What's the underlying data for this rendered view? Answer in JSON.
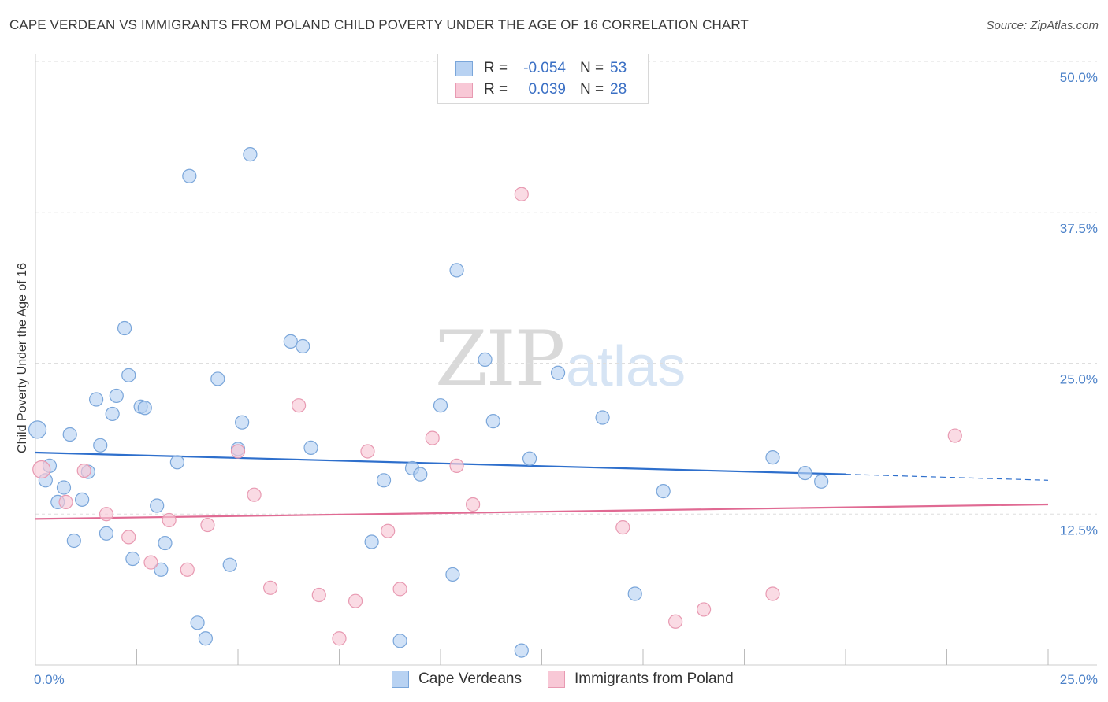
{
  "title": "CAPE VERDEAN VS IMMIGRANTS FROM POLAND CHILD POVERTY UNDER THE AGE OF 16 CORRELATION CHART",
  "source": "Source: ZipAtlas.com",
  "watermark": {
    "zip": "ZIP",
    "atlas": "atlas"
  },
  "legend": {
    "rows": [
      {
        "r_label": "R =",
        "r_value": "-0.054",
        "n_label": "N =",
        "n_value": "53"
      },
      {
        "r_label": "R =",
        "r_value": "0.039",
        "n_label": "N =",
        "n_value": "28"
      }
    ]
  },
  "bottom_legend": [
    "Cape Verdeans",
    "Immigrants from Poland"
  ],
  "colors": {
    "blue_fill": "#b8d2f2",
    "blue_stroke": "#7aa6da",
    "blue_line": "#2e6fcc",
    "pink_fill": "#f8c8d6",
    "pink_stroke": "#e89ab2",
    "pink_line": "#e06a93",
    "tick": "#4a80c8",
    "grid": "#dedede"
  },
  "chart_data": {
    "type": "scatter",
    "title": "CAPE VERDEAN VS IMMIGRANTS FROM POLAND CHILD POVERTY UNDER THE AGE OF 16 CORRELATION CHART",
    "xlabel": "",
    "ylabel": "Child Poverty Under the Age of 16",
    "xlim": [
      0,
      25
    ],
    "ylim": [
      0,
      50
    ],
    "x_ticks": [
      "0.0%",
      "25.0%"
    ],
    "y_ticks": [
      {
        "value": 50,
        "label": "50.0%"
      },
      {
        "value": 37.5,
        "label": "37.5%"
      },
      {
        "value": 25,
        "label": "25.0%"
      },
      {
        "value": 12.5,
        "label": "12.5%"
      }
    ],
    "grid": true,
    "legend_position": "top-center",
    "series": [
      {
        "name": "Cape Verdeans",
        "r": -0.054,
        "n": 53,
        "trend": {
          "x0": 0,
          "y0": 17.6,
          "x1": 20,
          "y1": 15.8,
          "dash_to": 25,
          "dash_y": 15.3
        },
        "points": [
          [
            0.05,
            19.5
          ],
          [
            0.25,
            15.3
          ],
          [
            0.35,
            16.5
          ],
          [
            0.55,
            13.5
          ],
          [
            0.7,
            14.7
          ],
          [
            0.85,
            19.1
          ],
          [
            0.95,
            10.3
          ],
          [
            1.15,
            13.7
          ],
          [
            1.3,
            16.0
          ],
          [
            1.5,
            22.0
          ],
          [
            1.6,
            18.2
          ],
          [
            1.75,
            10.9
          ],
          [
            1.9,
            20.8
          ],
          [
            2.0,
            22.3
          ],
          [
            2.2,
            27.9
          ],
          [
            2.3,
            24.0
          ],
          [
            2.4,
            8.8
          ],
          [
            2.6,
            21.4
          ],
          [
            2.7,
            21.3
          ],
          [
            3.0,
            13.2
          ],
          [
            3.1,
            7.9
          ],
          [
            3.2,
            10.1
          ],
          [
            3.5,
            16.8
          ],
          [
            3.8,
            40.5
          ],
          [
            4.0,
            3.5
          ],
          [
            4.2,
            2.2
          ],
          [
            4.5,
            23.7
          ],
          [
            4.8,
            8.3
          ],
          [
            5.0,
            17.9
          ],
          [
            5.1,
            20.1
          ],
          [
            5.3,
            42.3
          ],
          [
            6.3,
            26.8
          ],
          [
            6.6,
            26.4
          ],
          [
            6.8,
            18.0
          ],
          [
            8.3,
            10.2
          ],
          [
            8.6,
            15.3
          ],
          [
            9.0,
            2.0
          ],
          [
            9.3,
            16.3
          ],
          [
            9.5,
            15.8
          ],
          [
            10.0,
            21.5
          ],
          [
            10.3,
            7.5
          ],
          [
            10.4,
            32.7
          ],
          [
            11.1,
            25.3
          ],
          [
            11.3,
            20.2
          ],
          [
            12.0,
            1.2
          ],
          [
            12.2,
            17.1
          ],
          [
            12.9,
            24.2
          ],
          [
            14.0,
            20.5
          ],
          [
            14.8,
            5.9
          ],
          [
            15.5,
            14.4
          ],
          [
            18.2,
            17.2
          ],
          [
            19.0,
            15.9
          ],
          [
            19.4,
            15.2
          ]
        ]
      },
      {
        "name": "Immigrants from Poland",
        "r": 0.039,
        "n": 28,
        "trend": {
          "x0": 0,
          "y0": 12.1,
          "x1": 25,
          "y1": 13.3
        },
        "points": [
          [
            0.15,
            16.2
          ],
          [
            0.75,
            13.5
          ],
          [
            1.2,
            16.1
          ],
          [
            1.75,
            12.5
          ],
          [
            2.3,
            10.6
          ],
          [
            2.85,
            8.5
          ],
          [
            3.3,
            12.0
          ],
          [
            3.75,
            7.9
          ],
          [
            4.25,
            11.6
          ],
          [
            5.0,
            17.7
          ],
          [
            5.4,
            14.1
          ],
          [
            5.8,
            6.4
          ],
          [
            6.5,
            21.5
          ],
          [
            7.0,
            5.8
          ],
          [
            7.5,
            2.2
          ],
          [
            7.9,
            5.3
          ],
          [
            8.2,
            17.7
          ],
          [
            8.7,
            11.1
          ],
          [
            9.0,
            6.3
          ],
          [
            9.8,
            18.8
          ],
          [
            10.4,
            16.5
          ],
          [
            10.8,
            13.3
          ],
          [
            12.0,
            39.0
          ],
          [
            14.5,
            11.4
          ],
          [
            15.8,
            3.6
          ],
          [
            16.5,
            4.6
          ],
          [
            18.2,
            5.9
          ],
          [
            22.7,
            19.0
          ]
        ]
      }
    ]
  }
}
